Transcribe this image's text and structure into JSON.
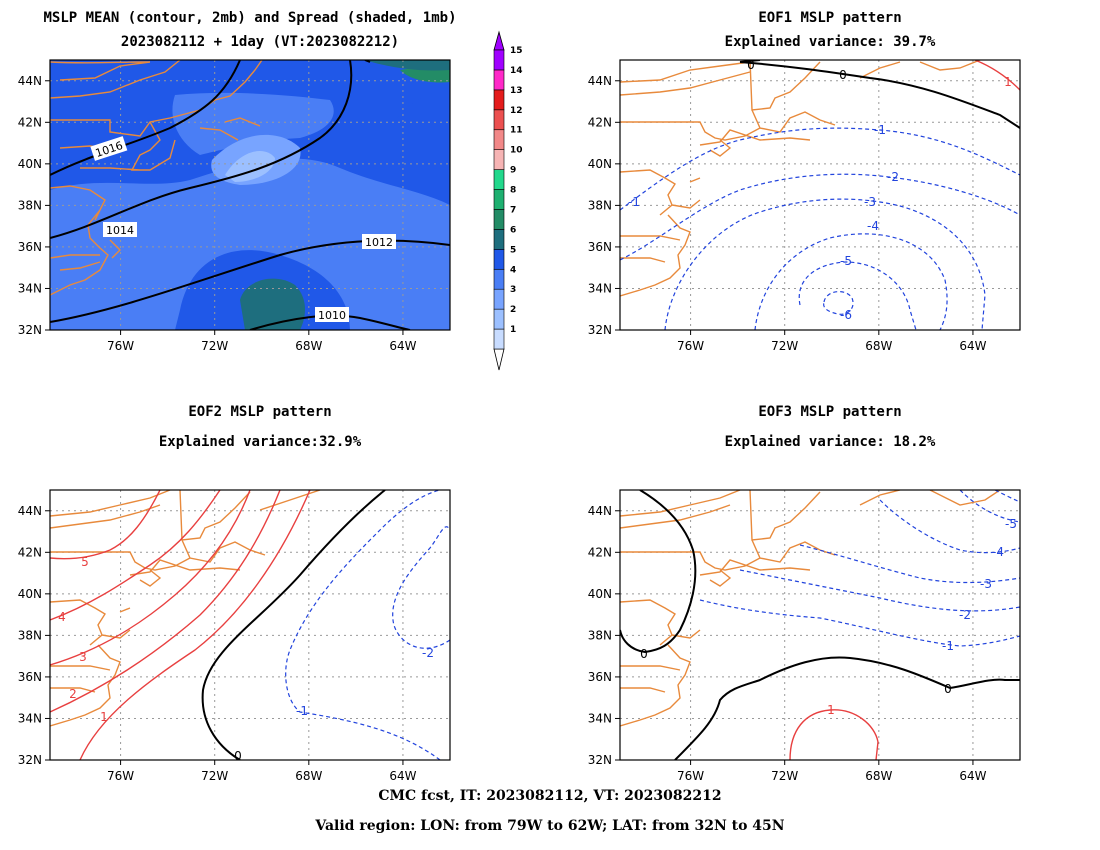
{
  "panels": [
    {
      "id": "mean",
      "title_line1": "MSLP MEAN (contour, 2mb) and Spread (shaded, 1mb)",
      "title_line2": "2023082112 + 1day (VT:2023082212)",
      "contour_labels": [
        "1016",
        "1014",
        "1012",
        "1010"
      ]
    },
    {
      "id": "eof1",
      "title_line1": "EOF1 MSLP pattern",
      "title_line2": "Explained variance: 39.7%",
      "contour_labels": [
        "0",
        "0",
        "1",
        "-1",
        "-1",
        "-2",
        "-3",
        "-4",
        "-5",
        "-6"
      ]
    },
    {
      "id": "eof2",
      "title_line1": "EOF2 MSLP pattern",
      "title_line2": "Explained variance:32.9%",
      "contour_labels": [
        "5",
        "4",
        "3",
        "2",
        "1",
        "0",
        "-1",
        "-2"
      ]
    },
    {
      "id": "eof3",
      "title_line1": "EOF3 MSLP pattern",
      "title_line2": "Explained variance: 18.2%",
      "contour_labels": [
        "0",
        "0",
        "1",
        "-1",
        "-2",
        "-3",
        "-4",
        "-5"
      ]
    }
  ],
  "chart_data": {
    "type": "contour",
    "x_tick_labels": [
      "76W",
      "72W",
      "68W",
      "64W"
    ],
    "y_tick_labels": [
      "44N",
      "42N",
      "40N",
      "38N",
      "36N",
      "34N",
      "32N"
    ],
    "xlim": [
      "79W",
      "62W"
    ],
    "ylim": [
      "32N",
      "45N"
    ],
    "grid": true,
    "colorbar": {
      "labels": [
        "1",
        "2",
        "3",
        "4",
        "5",
        "6",
        "7",
        "8",
        "9",
        "10",
        "11",
        "12",
        "13",
        "14",
        "15"
      ],
      "colors": [
        "#c8dcff",
        "#9cc0ff",
        "#78a4ff",
        "#4a7ef5",
        "#2058e8",
        "#1e6e7e",
        "#238c66",
        "#1eb070",
        "#22d88c",
        "#f6b4b4",
        "#f28888",
        "#ec5050",
        "#e41c1c",
        "#ff28c8",
        "#a000ff"
      ]
    },
    "mean_isobars_mb": [
      1016,
      1014,
      1012,
      1010
    ],
    "eof1_contours": [
      0,
      1,
      -1,
      -2,
      -3,
      -4,
      -5,
      -6
    ],
    "eof2_contours": [
      5,
      4,
      3,
      2,
      1,
      0,
      -1,
      -2
    ],
    "eof3_contours": [
      0,
      1,
      -1,
      -2,
      -3,
      -4,
      -5
    ],
    "colors": {
      "positive": "#e84040",
      "zero": "#000000",
      "negative": "#2244dd",
      "coast": "#e88a3c",
      "grid": "#999999"
    }
  },
  "footer": {
    "line1": "CMC fcst, IT: 2023082112, VT: 2023082212",
    "line2": "Valid region: LON: from 79W to 62W; LAT: from 32N to 45N"
  }
}
